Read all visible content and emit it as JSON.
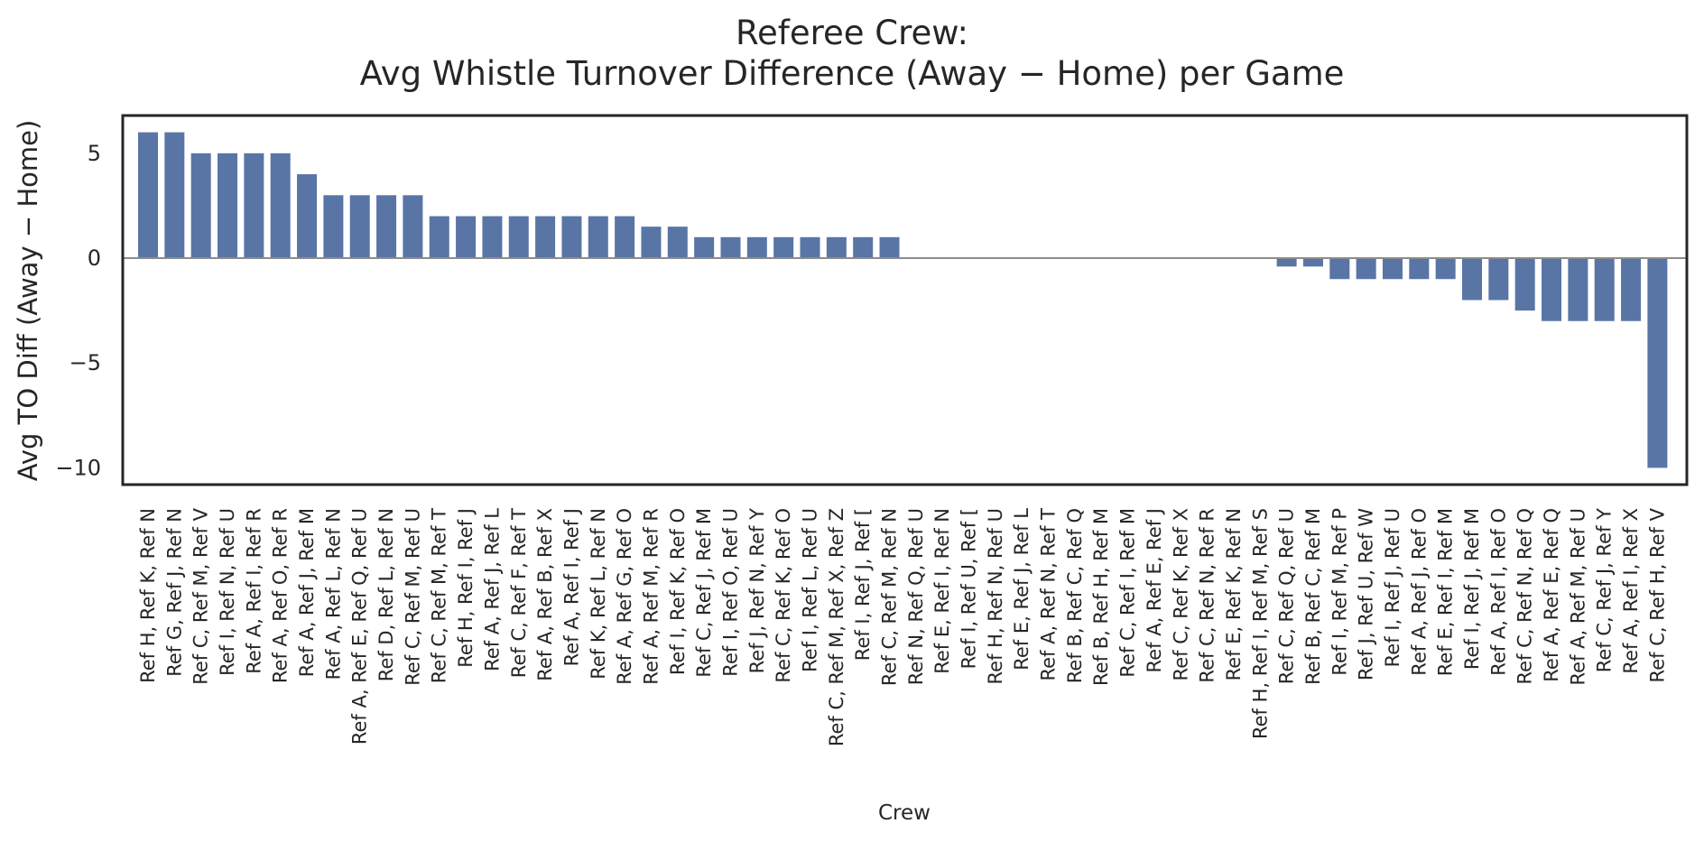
{
  "colors": {
    "bar": "#5875a6",
    "zero_line": "#8c8c8c",
    "frame": "#262626",
    "text": "#262626"
  },
  "chart_data": {
    "type": "bar",
    "title": "Referee Crew:",
    "subtitle": "Avg Whistle Turnover Difference (Away − Home) per Game",
    "xlabel": "Crew",
    "ylabel": "Avg TO Diff (Away − Home)",
    "ylim": [
      -10.8,
      6.8
    ],
    "yticks": [
      5,
      0,
      -5,
      -10
    ],
    "ytick_labels": [
      "5",
      "0",
      "−5",
      "−10"
    ],
    "zero_line": true,
    "grid": false,
    "categories": [
      "Ref H, Ref K, Ref N",
      "Ref G, Ref J, Ref N",
      "Ref C, Ref M, Ref V",
      "Ref I, Ref N, Ref U",
      "Ref A, Ref I, Ref R",
      "Ref A, Ref O, Ref R",
      "Ref A, Ref J, Ref M",
      "Ref A, Ref L, Ref N",
      "Ref A, Ref E, Ref Q, Ref U",
      "Ref D, Ref L, Ref N",
      "Ref C, Ref M, Ref U",
      "Ref C, Ref M, Ref T",
      "Ref H, Ref I, Ref J",
      "Ref A, Ref J, Ref L",
      "Ref C, Ref F, Ref T",
      "Ref A, Ref B, Ref X",
      "Ref A, Ref I, Ref J",
      "Ref K, Ref L, Ref N",
      "Ref A, Ref G, Ref O",
      "Ref A, Ref M, Ref R",
      "Ref I, Ref K, Ref O",
      "Ref C, Ref J, Ref M",
      "Ref I, Ref O, Ref U",
      "Ref J, Ref N, Ref Y",
      "Ref C, Ref K, Ref O",
      "Ref I, Ref L, Ref U",
      "Ref C, Ref M, Ref X, Ref Z",
      "Ref I, Ref J, Ref [",
      "Ref C, Ref M, Ref N",
      "Ref N, Ref Q, Ref U",
      "Ref E, Ref I, Ref N",
      "Ref I, Ref U, Ref [",
      "Ref H, Ref N, Ref U",
      "Ref E, Ref J, Ref L",
      "Ref A, Ref N, Ref T",
      "Ref B, Ref C, Ref Q",
      "Ref B, Ref H, Ref M",
      "Ref C, Ref I, Ref M",
      "Ref A, Ref E, Ref J",
      "Ref C, Ref K, Ref X",
      "Ref C, Ref N, Ref R",
      "Ref E, Ref K, Ref N",
      "Ref H, Ref I, Ref M, Ref S",
      "Ref C, Ref Q, Ref U",
      "Ref B, Ref C, Ref M",
      "Ref I, Ref M, Ref P",
      "Ref J, Ref U, Ref W",
      "Ref I, Ref J, Ref U",
      "Ref A, Ref J, Ref O",
      "Ref E, Ref I, Ref M",
      "Ref I, Ref J, Ref M",
      "Ref A, Ref I, Ref O",
      "Ref C, Ref N, Ref Q",
      "Ref A, Ref E, Ref Q",
      "Ref A, Ref M, Ref U",
      "Ref C, Ref J, Ref Y",
      "Ref A, Ref I, Ref X",
      "Ref C, Ref H, Ref V"
    ],
    "values": [
      6,
      6,
      5,
      5,
      5,
      5,
      4,
      3,
      3,
      3,
      3,
      2,
      2,
      2,
      2,
      2,
      2,
      2,
      2,
      1.5,
      1.5,
      1,
      1,
      1,
      1,
      1,
      1,
      1,
      1,
      0,
      0,
      0,
      0,
      0,
      0,
      0,
      0,
      0,
      0,
      0,
      0,
      0,
      0,
      -0.4,
      -0.4,
      -1,
      -1,
      -1,
      -1,
      -1,
      -2,
      -2,
      -2.5,
      -3,
      -3,
      -3,
      -3,
      -10
    ]
  }
}
